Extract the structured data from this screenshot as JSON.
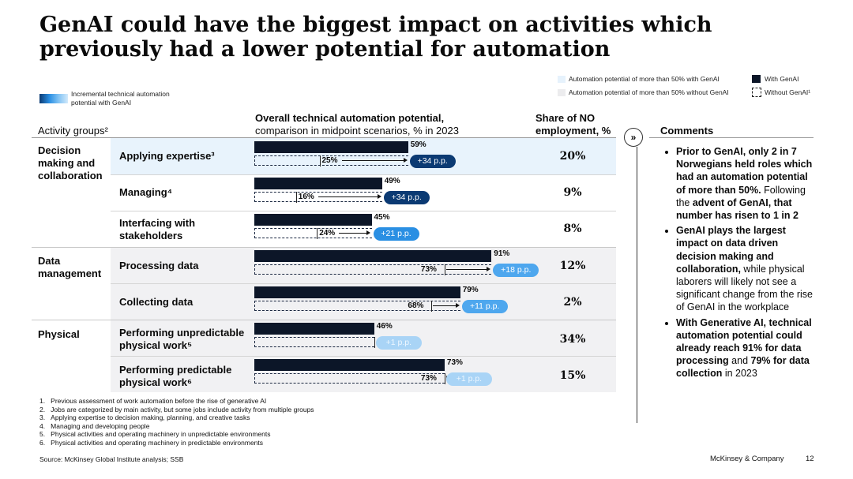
{
  "title": "GenAI could have the biggest impact on activities which previously had a lower potential for automation",
  "legend": {
    "gradient_label": "Incremental technical automation potential with GenAI",
    "more_than_50_with": "Automation potential of more than 50% with GenAI",
    "more_than_50_without": "Automation potential of more than 50% without GenAI",
    "with_genai": "With GenAI",
    "without_genai": "Without GenAI¹"
  },
  "headers": {
    "activity_groups": "Activity groups²",
    "chart_title": "Overall technical automation potential,",
    "chart_subtitle": "comparison in midpoint scenarios, % in 2023",
    "share_line1": "Share of NO",
    "share_line2": "employment, %",
    "comments": "Comments"
  },
  "groups": [
    "Decision making and collaboration",
    "Data management",
    "Physical"
  ],
  "chart_data": {
    "type": "bar",
    "title": "Overall technical automation potential, comparison in midpoint scenarios, % in 2023",
    "xlim": [
      0,
      100
    ],
    "categories": [
      "Applying expertise³",
      "Managing⁴",
      "Interfacing with stakeholders",
      "Processing data",
      "Collecting data",
      "Performing unpredictable physical work⁵",
      "Performing predictable physical work⁶"
    ],
    "series": [
      {
        "name": "With GenAI",
        "values": [
          59,
          49,
          45,
          91,
          79,
          46,
          73
        ]
      },
      {
        "name": "Without GenAI¹",
        "values": [
          25,
          16,
          24,
          73,
          68,
          46,
          73
        ]
      }
    ],
    "increments": [
      "+34 p.p.",
      "+34 p.p.",
      "+21 p.p.",
      "+18 p.p.",
      "+11 p.p.",
      "+1 p.p.",
      "+1 p.p."
    ],
    "increment_colors": [
      "#0b3a73",
      "#0b3a73",
      "#2a8fe3",
      "#4ea7ee",
      "#4ea7ee",
      "#a9d4f6",
      "#a9d4f6"
    ],
    "share_of_employment": [
      "20%",
      "9%",
      "8%",
      "12%",
      "2%",
      "34%",
      "15%"
    ]
  },
  "comments": [
    {
      "bold": "Prior to GenAI, only 2 in 7 Norwegians held roles which had an automation potential of more than 50%.",
      "regular": " Following the ",
      "bold2": "advent of GenAI, that number has risen to 1 in 2",
      "regular2": ""
    },
    {
      "bold": "GenAI plays the largest impact on data driven decision making and collaboration,",
      "regular": " while physical laborers will likely not see a significant change from the rise of GenAI in the workplace",
      "bold2": "",
      "regular2": ""
    },
    {
      "bold": "With Generative AI, technical automation potential could already reach 91% for data processing",
      "regular": " and ",
      "bold2": "79% for data collection",
      "regular2": " in 2023"
    }
  ],
  "footnotes": [
    "1.   Previous assessment of work automation before the rise of generative AI",
    "2.   Jobs are categorized by main activity, but some jobs include activity from multiple groups",
    "3.   Applying expertise to decision making, planning, and creative tasks",
    "4.   Managing and developing people",
    "5.   Physical activities and operating machinery in unpredictable environments",
    "6.   Physical activities and operating machinery in predictable environments"
  ],
  "source": "Source: McKinsey Global Institute analysis; SSB",
  "brand": "McKinsey & Company",
  "page_number": "12",
  "colors": {
    "bar_dark": "#0c1628",
    "row_light": "#e8f3fc",
    "row_grey": "#f1f1f3"
  }
}
